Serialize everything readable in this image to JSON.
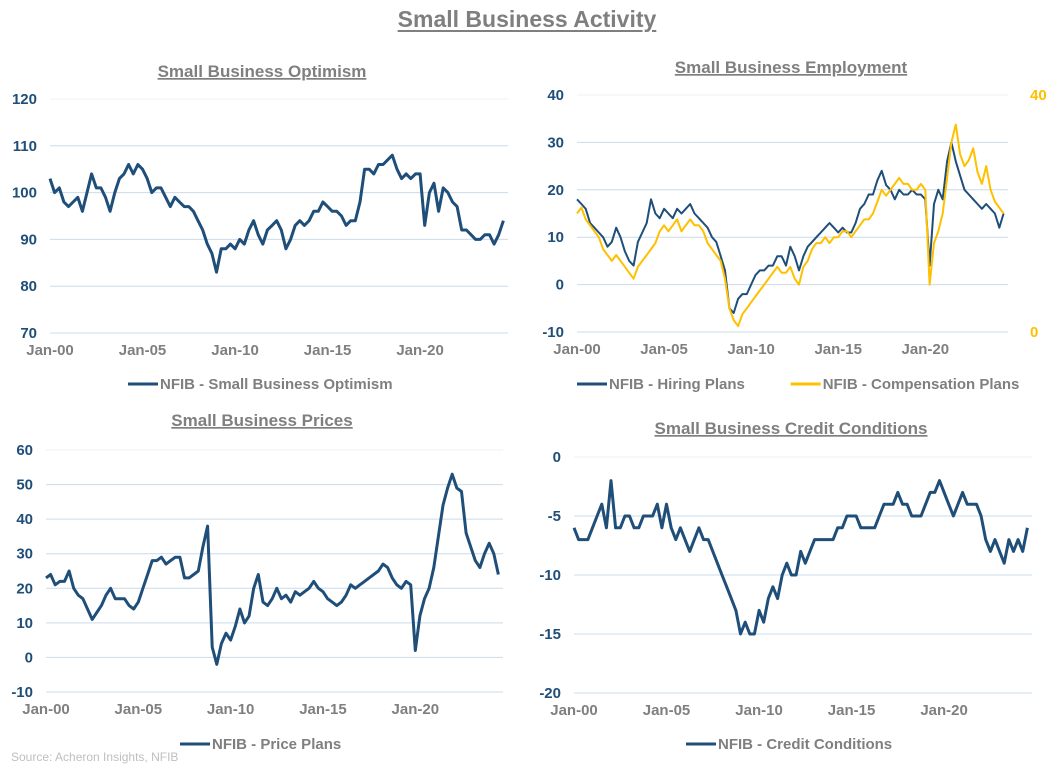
{
  "page": {
    "title": "Small Business Activity",
    "source": "Source: Acheron Insights, NFIB"
  },
  "colors": {
    "navy": "#1f4e79",
    "gold": "#ffc000",
    "grid": "#c9dcec",
    "text_gray": "#7f7f7f"
  },
  "chart_data": [
    {
      "id": "optimism",
      "type": "line",
      "title": "Small Business Optimism",
      "x_start": "2000-01",
      "x_step": "quarter",
      "x_ticks": [
        "Jan-00",
        "Jan-05",
        "Jan-10",
        "Jan-15",
        "Jan-20"
      ],
      "ylim": [
        70,
        120
      ],
      "y_ticks": [
        70,
        80,
        90,
        100,
        110,
        120
      ],
      "grid": true,
      "legend_position": "bottom",
      "series": [
        {
          "name": "NFIB - Small Business Optimism",
          "color": "#1f4e79",
          "axis": "left",
          "values": [
            103,
            100,
            101,
            98,
            97,
            98,
            99,
            96,
            100,
            104,
            101,
            101,
            99,
            96,
            100,
            103,
            104,
            106,
            104,
            106,
            105,
            103,
            100,
            101,
            101,
            99,
            97,
            99,
            98,
            97,
            97,
            96,
            94,
            92,
            89,
            87,
            83,
            88,
            88,
            89,
            88,
            90,
            89,
            92,
            94,
            91,
            89,
            92,
            93,
            94,
            92,
            88,
            90,
            93,
            94,
            93,
            94,
            96,
            96,
            98,
            97,
            96,
            96,
            95,
            93,
            94,
            94,
            98,
            105,
            105,
            104,
            106,
            106,
            107,
            108,
            105,
            103,
            104,
            103,
            104,
            104,
            93,
            100,
            102,
            96,
            101,
            100,
            98,
            97,
            92,
            92,
            91,
            90,
            90,
            91,
            91,
            89,
            91,
            94
          ]
        }
      ]
    },
    {
      "id": "employment",
      "type": "line",
      "title": "Small Business Employment",
      "x_start": "2000-01",
      "x_step": "quarter",
      "x_ticks": [
        "Jan-00",
        "Jan-05",
        "Jan-10",
        "Jan-15",
        "Jan-20"
      ],
      "ylim": [
        -10,
        40
      ],
      "y_ticks": [
        -10,
        0,
        10,
        20,
        30,
        40
      ],
      "y2lim": [
        0,
        40
      ],
      "y2_ticks": [
        0,
        40
      ],
      "grid": true,
      "legend_position": "bottom",
      "series": [
        {
          "name": "NFIB - Hiring Plans",
          "color": "#1f4e79",
          "axis": "left",
          "values": [
            18,
            17,
            16,
            13,
            12,
            11,
            10,
            8,
            9,
            12,
            10,
            7,
            5,
            4,
            9,
            11,
            13,
            18,
            15,
            14,
            16,
            15,
            14,
            16,
            15,
            16,
            17,
            15,
            14,
            13,
            12,
            10,
            9,
            6,
            3,
            -5,
            -6,
            -3,
            -2,
            -2,
            0,
            2,
            3,
            3,
            4,
            4,
            6,
            6,
            4,
            8,
            6,
            3,
            6,
            8,
            9,
            10,
            11,
            12,
            13,
            12,
            11,
            12,
            11,
            11,
            13,
            16,
            17,
            19,
            19,
            22,
            24,
            21,
            20,
            18,
            20,
            19,
            19,
            20,
            19,
            19,
            18,
            4,
            17,
            20,
            18,
            26,
            30,
            26,
            23,
            20,
            19,
            18,
            17,
            16,
            17,
            16,
            15,
            12,
            15
          ]
        },
        {
          "name": "NFIB - Compensation Plans",
          "color": "#ffc000",
          "axis": "right",
          "values": [
            20,
            21,
            19,
            18,
            17,
            16,
            14,
            13,
            12,
            13,
            12,
            11,
            10,
            9,
            11,
            12,
            13,
            14,
            15,
            17,
            18,
            17,
            18,
            19,
            17,
            18,
            19,
            18,
            18,
            17,
            15,
            14,
            13,
            12,
            9,
            4,
            2,
            1,
            3,
            4,
            5,
            6,
            7,
            8,
            9,
            10,
            11,
            10,
            10,
            11,
            9,
            8,
            11,
            12,
            14,
            15,
            15,
            16,
            15,
            16,
            16,
            17,
            17,
            16,
            17,
            18,
            19,
            19,
            20,
            22,
            24,
            23,
            24,
            25,
            26,
            25,
            25,
            24,
            24,
            25,
            24,
            8,
            15,
            17,
            20,
            26,
            32,
            35,
            30,
            28,
            29,
            31,
            27,
            25,
            28,
            24,
            22,
            21,
            20
          ]
        }
      ]
    },
    {
      "id": "prices",
      "type": "line",
      "title": "Small Business Prices",
      "x_start": "2000-01",
      "x_step": "quarter",
      "x_ticks": [
        "Jan-00",
        "Jan-05",
        "Jan-10",
        "Jan-15",
        "Jan-20"
      ],
      "ylim": [
        -10,
        60
      ],
      "y_ticks": [
        -10,
        0,
        10,
        20,
        30,
        40,
        50,
        60
      ],
      "grid": true,
      "legend_position": "bottom",
      "series": [
        {
          "name": "NFIB - Price Plans",
          "color": "#1f4e79",
          "axis": "left",
          "values": [
            23,
            24,
            21,
            22,
            22,
            25,
            20,
            18,
            17,
            14,
            11,
            13,
            15,
            18,
            20,
            17,
            17,
            17,
            15,
            14,
            16,
            20,
            24,
            28,
            28,
            29,
            27,
            28,
            29,
            29,
            23,
            23,
            24,
            25,
            32,
            38,
            3,
            -2,
            4,
            7,
            5,
            9,
            14,
            10,
            12,
            20,
            24,
            16,
            15,
            17,
            20,
            17,
            18,
            16,
            19,
            18,
            19,
            20,
            22,
            20,
            19,
            17,
            16,
            15,
            16,
            18,
            21,
            20,
            21,
            22,
            23,
            24,
            25,
            27,
            26,
            23,
            21,
            20,
            22,
            21,
            2,
            12,
            17,
            20,
            26,
            35,
            44,
            49,
            53,
            49,
            48,
            36,
            32,
            28,
            26,
            30,
            33,
            30,
            24
          ]
        }
      ]
    },
    {
      "id": "credit",
      "type": "line",
      "title": "Small Business Credit Conditions",
      "x_start": "2000-01",
      "x_step": "quarter",
      "x_ticks": [
        "Jan-00",
        "Jan-05",
        "Jan-10",
        "Jan-15",
        "Jan-20"
      ],
      "ylim": [
        -20,
        0
      ],
      "y_ticks": [
        -20,
        -15,
        -10,
        -5,
        0
      ],
      "grid": true,
      "legend_position": "bottom",
      "series": [
        {
          "name": "NFIB - Credit Conditions",
          "color": "#1f4e79",
          "axis": "left",
          "values": [
            -6,
            -7,
            -7,
            -7,
            -6,
            -5,
            -4,
            -6,
            -2,
            -6,
            -6,
            -5,
            -5,
            -6,
            -6,
            -5,
            -5,
            -5,
            -4,
            -6,
            -4,
            -6,
            -7,
            -6,
            -7,
            -8,
            -7,
            -6,
            -7,
            -7,
            -8,
            -9,
            -10,
            -11,
            -12,
            -13,
            -15,
            -14,
            -15,
            -15,
            -13,
            -14,
            -12,
            -11,
            -12,
            -10,
            -9,
            -10,
            -10,
            -8,
            -9,
            -8,
            -7,
            -7,
            -7,
            -7,
            -7,
            -6,
            -6,
            -5,
            -5,
            -5,
            -6,
            -6,
            -6,
            -6,
            -5,
            -4,
            -4,
            -4,
            -3,
            -4,
            -4,
            -5,
            -5,
            -5,
            -4,
            -3,
            -3,
            -2,
            -3,
            -4,
            -5,
            -4,
            -3,
            -4,
            -4,
            -4,
            -5,
            -7,
            -8,
            -7,
            -8,
            -9,
            -7,
            -8,
            -7,
            -8,
            -6
          ]
        }
      ]
    }
  ]
}
